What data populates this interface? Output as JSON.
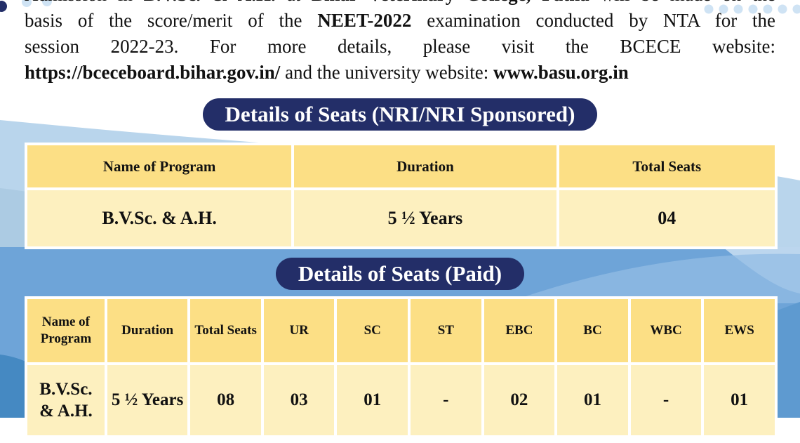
{
  "intro": {
    "lines": [
      {
        "segments": [
          {
            "text": "Admission in ",
            "bold": false
          },
          {
            "text": "B.V.Sc. & A.H.",
            "bold": true
          },
          {
            "text": " at ",
            "bold": false
          },
          {
            "text": "Bihar Veterinary College, Patna",
            "bold": true
          },
          {
            "text": " will be made on the",
            "bold": false
          }
        ]
      },
      {
        "segments": [
          {
            "text": "basis of the score/merit of the ",
            "bold": false
          },
          {
            "text": "NEET-2022",
            "bold": true
          },
          {
            "text": " examination conducted by NTA for the",
            "bold": false
          }
        ]
      },
      {
        "segments": [
          {
            "text": "session 2022-23. For more details, please visit the BCECE website:",
            "bold": false
          }
        ]
      },
      {
        "segments": [
          {
            "text": "https://bceceboard.bihar.gov.in/",
            "bold": true,
            "link": true
          },
          {
            "text": " and the university website: ",
            "bold": false
          },
          {
            "text": "www.basu.org.in",
            "bold": true,
            "link": true
          }
        ]
      }
    ]
  },
  "section_nri": {
    "title": "Details of Seats (NRI/NRI Sponsored)",
    "table": {
      "headers": [
        "Name of Program",
        "Duration",
        "Total Seats"
      ],
      "row": [
        "B.V.Sc. & A.H.",
        "5 ½ Years",
        "04"
      ]
    }
  },
  "section_paid": {
    "title": "Details of Seats (Paid)",
    "table": {
      "headers": [
        "Name of Program",
        "Duration",
        "Total Seats",
        "UR",
        "SC",
        "ST",
        "EBC",
        "BC",
        "WBC",
        "EWS"
      ],
      "row": [
        "B.V.Sc. & A.H.",
        "5 ½ Years",
        "08",
        "03",
        "01",
        "-",
        "02",
        "01",
        "-",
        "01"
      ]
    }
  },
  "colors": {
    "pill_navy": "#232e68",
    "table_header_yellow": "#fcdf85",
    "table_cell_cream": "#fdf0bf",
    "wave_light_blue": "#b9d5ec",
    "wave_medium_blue": "#6ea4d8",
    "wave_dark_blue": "#4589c2",
    "dot_light_blue": "#cfe3f4"
  }
}
